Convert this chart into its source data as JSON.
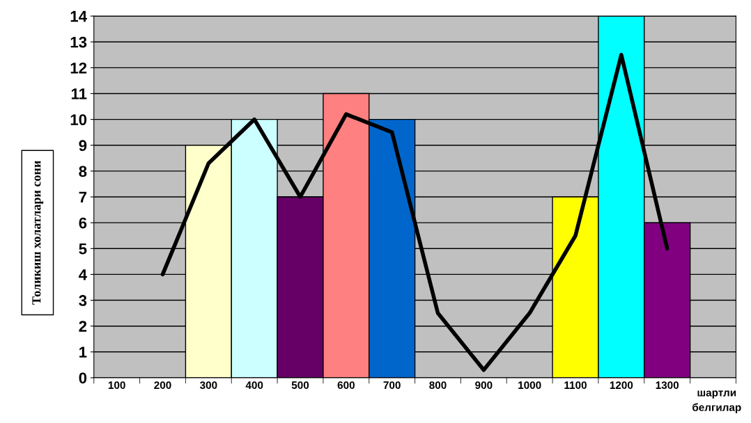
{
  "chart_data": {
    "type": "bar",
    "xlabel": "шартли белгилар",
    "ylabel": "Толикиш холатлари сони",
    "categories": [
      "100",
      "200",
      "300",
      "400",
      "500",
      "600",
      "700",
      "800",
      "900",
      "1000",
      "1100",
      "1200",
      "1300"
    ],
    "ylim": [
      0,
      14
    ],
    "yticks": [
      0,
      1,
      2,
      3,
      4,
      5,
      6,
      7,
      8,
      9,
      10,
      11,
      12,
      13,
      14
    ],
    "grid": "y",
    "legend": false,
    "series": [
      {
        "values": [
          null,
          null,
          9,
          10,
          7,
          11,
          10,
          null,
          null,
          null,
          7,
          14,
          6
        ],
        "colors": [
          "#c0c0c0",
          "#c0c0c0",
          "#ffffcc",
          "#ccffff",
          "#660066",
          "#ff8080",
          "#0066cc",
          "#c0c0c0",
          "#c0c0c0",
          "#c0c0c0",
          "#ffff00",
          "#00ffff",
          "#800080"
        ]
      },
      {
        "type": "line",
        "color": "#000000",
        "values": [
          null,
          4,
          8.3,
          10,
          7,
          10.2,
          9.5,
          2.5,
          0.3,
          2.5,
          5.5,
          12.5,
          5
        ]
      }
    ]
  }
}
